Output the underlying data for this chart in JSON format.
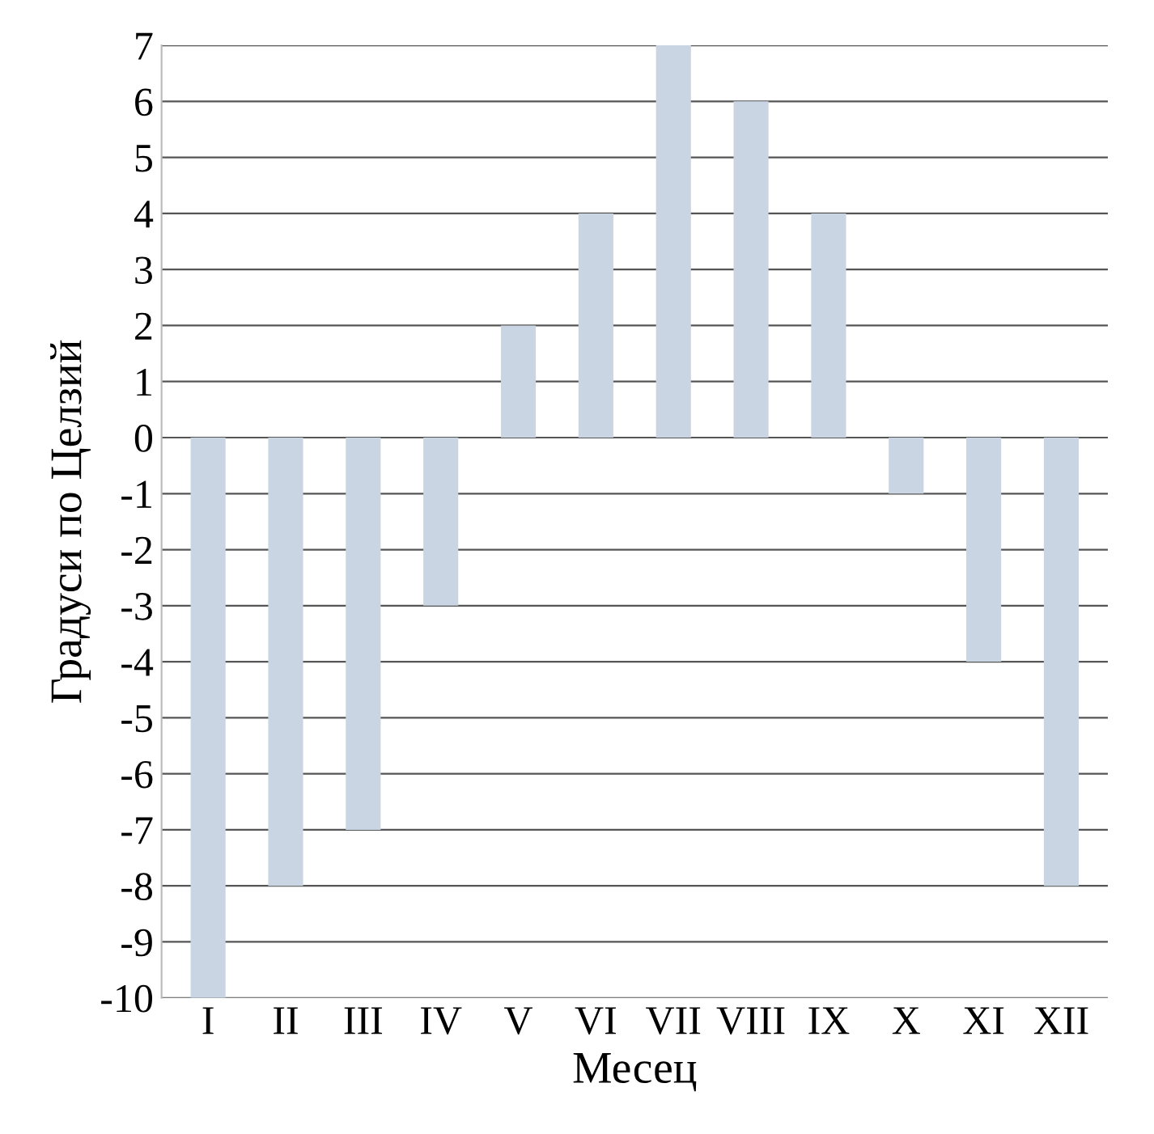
{
  "chart_data": {
    "type": "bar",
    "categories": [
      "I",
      "II",
      "III",
      "IV",
      "V",
      "VI",
      "VII",
      "VIII",
      "IX",
      "X",
      "XI",
      "XII"
    ],
    "values": [
      -10,
      -8,
      -7,
      -3,
      2,
      4,
      7,
      6,
      4,
      -1,
      -4,
      -8
    ],
    "color": "#c9d5e2",
    "xlabel": "Месец",
    "ylabel": "Градуси по Целзий",
    "ylim": [
      -10,
      7
    ],
    "yticks": [
      -10,
      -9,
      -8,
      -7,
      -6,
      -5,
      -4,
      -3,
      -2,
      -1,
      0,
      1,
      2,
      3,
      4,
      5,
      6,
      7
    ],
    "grid": "y"
  }
}
